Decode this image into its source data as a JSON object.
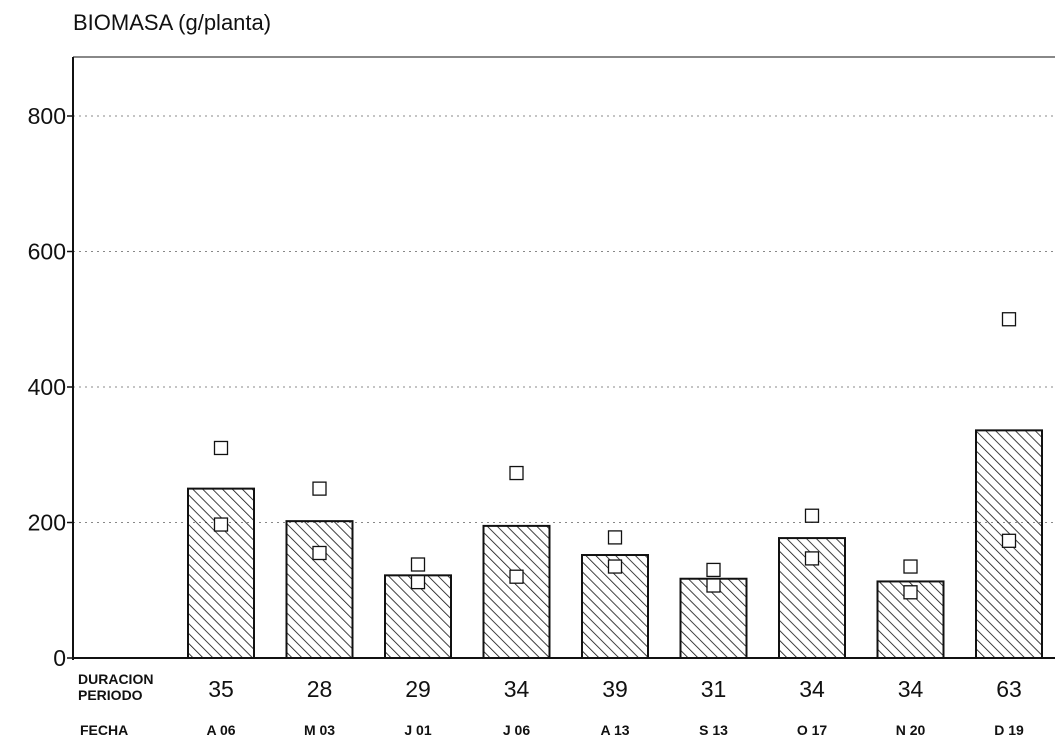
{
  "chart_data": {
    "type": "bar",
    "ylabel": "BIOMASA (g/planta)",
    "ylim": [
      0,
      900
    ],
    "yticks": [
      0,
      200,
      400,
      600,
      800
    ],
    "grid": "dotted horizontal",
    "row_labels": {
      "duration_line1": "DURACION",
      "duration_line2": "PERIODO",
      "date": "FECHA"
    },
    "categories": [
      "A 06",
      "M 03",
      "J 01",
      "J 06",
      "A 13",
      "S 13",
      "O 17",
      "N 20",
      "D 19"
    ],
    "durations": [
      "35",
      "28",
      "29",
      "34",
      "39",
      "31",
      "34",
      "34",
      "63"
    ],
    "series": [
      {
        "marker": "bar",
        "values": [
          250,
          202,
          122,
          195,
          152,
          117,
          177,
          113,
          336
        ]
      },
      {
        "marker": "open-square-above",
        "values": [
          310,
          250,
          138,
          273,
          178,
          130,
          210,
          135,
          500
        ]
      },
      {
        "marker": "open-square-inside",
        "values": [
          197,
          155,
          112,
          120,
          135,
          107,
          147,
          97,
          173
        ]
      }
    ],
    "colors": {
      "ink": "#111111",
      "grid": "#888888"
    }
  }
}
